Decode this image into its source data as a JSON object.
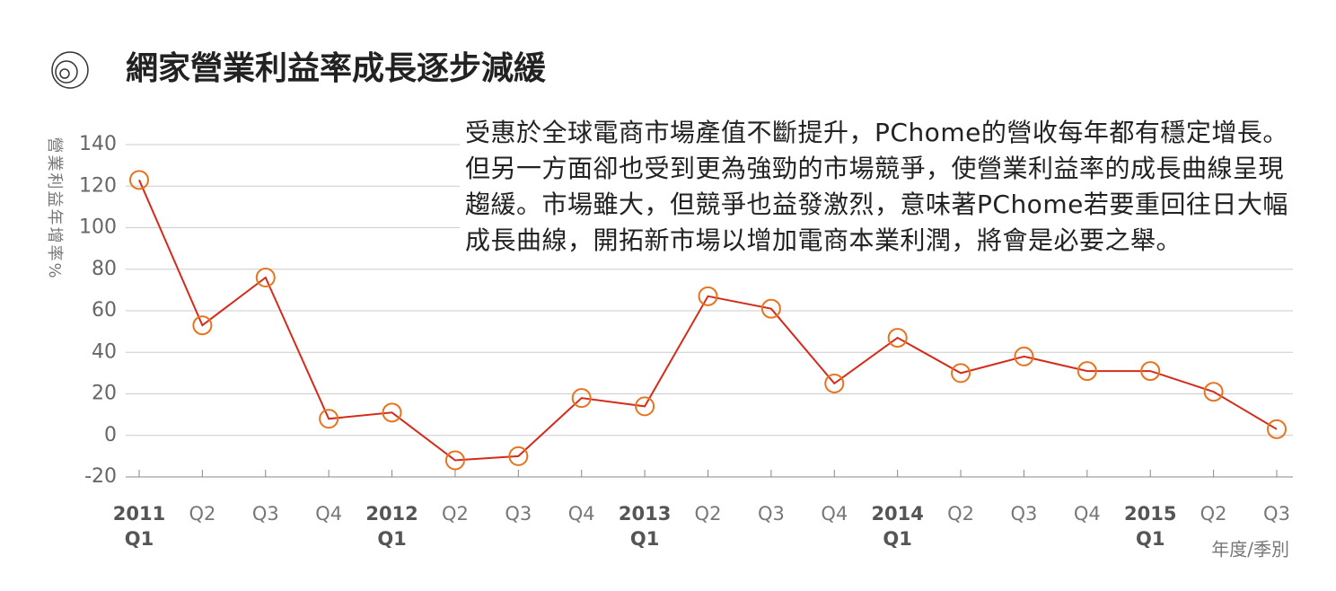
{
  "chart_data": {
    "type": "line",
    "title": "網家營業利益率成長逐步減緩",
    "annotation": "受惠於全球電商市場產值不斷提升，PChome的營收每年都有穩定增長。但另一方面卻也受到更為強勁的市場競爭，使營業利益率的成長曲線呈現趨緩。市場雖大，但競爭也益發激烈，意味著PChome若要重回往日大幅成長曲線，開拓新市場以增加電商本業利潤，將會是必要之舉。",
    "y_label": "營業利益年增率%",
    "x_label": "年度/季別",
    "categories": [
      [
        "2011",
        "Q1"
      ],
      [
        "Q2"
      ],
      [
        "Q3"
      ],
      [
        "Q4"
      ],
      [
        "2012",
        "Q1"
      ],
      [
        "Q2"
      ],
      [
        "Q3"
      ],
      [
        "Q4"
      ],
      [
        "2013",
        "Q1"
      ],
      [
        "Q2"
      ],
      [
        "Q3"
      ],
      [
        "Q4"
      ],
      [
        "2014",
        "Q1"
      ],
      [
        "Q2"
      ],
      [
        "Q3"
      ],
      [
        "Q4"
      ],
      [
        "2015",
        "Q1"
      ],
      [
        "Q2"
      ],
      [
        "Q3"
      ]
    ],
    "series": [
      {
        "name": "營業利益年增率",
        "color": "#d42b1a",
        "marker_color": "#e8731e",
        "values": [
          123,
          53,
          76,
          8,
          11,
          -12,
          -10,
          18,
          14,
          67,
          61,
          25,
          47,
          30,
          38,
          31,
          31,
          21,
          3
        ]
      }
    ],
    "ylim": [
      -20,
      140
    ],
    "yticks": [
      -20,
      0,
      20,
      40,
      60,
      80,
      100,
      120,
      140
    ],
    "grid": true
  }
}
